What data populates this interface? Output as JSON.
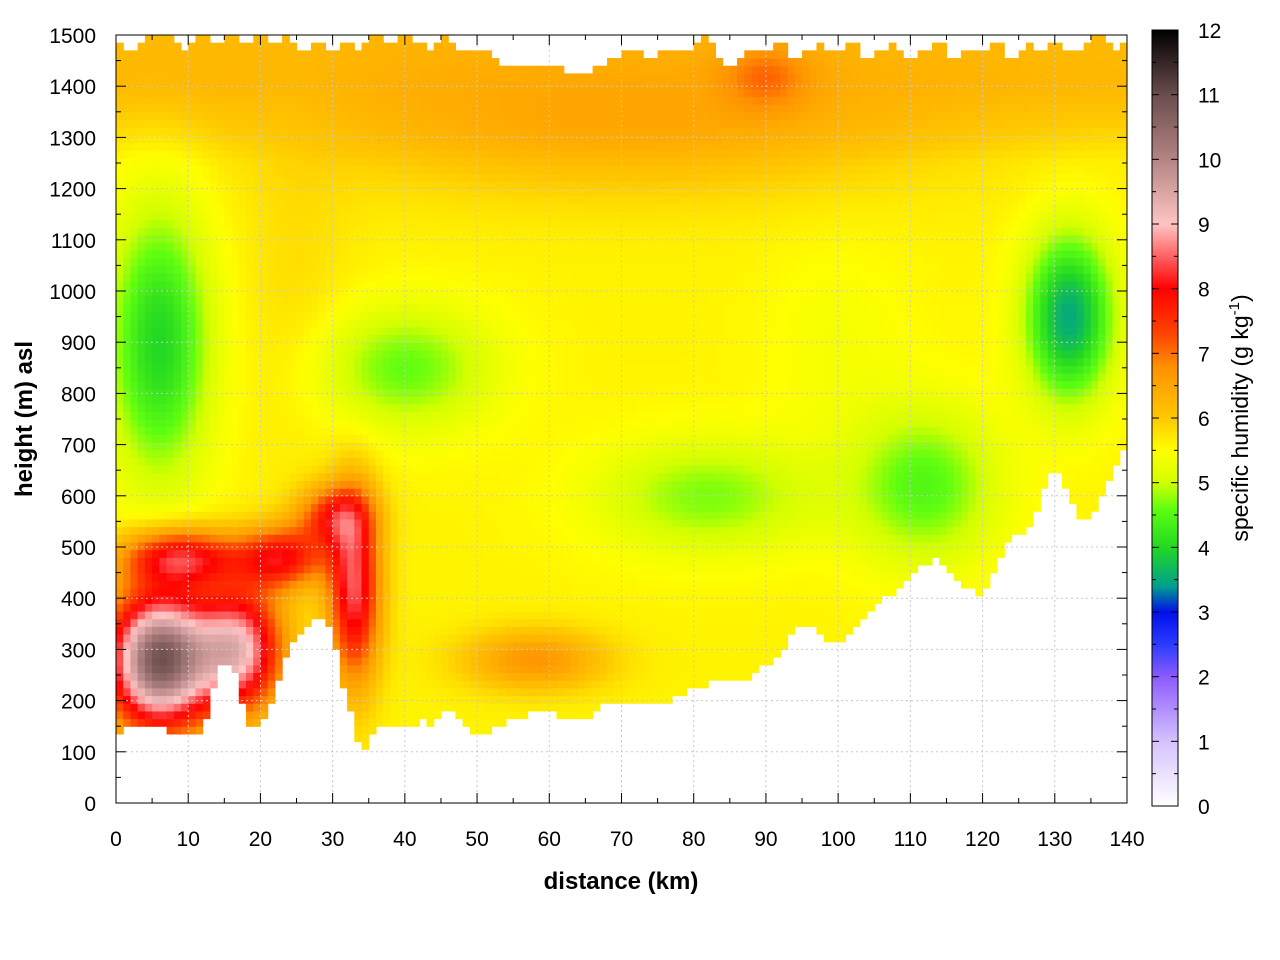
{
  "chart_data": {
    "type": "heatmap",
    "xlabel": "distance (km)",
    "ylabel": "height (m) asl",
    "xlim": [
      0,
      140
    ],
    "ylim": [
      0,
      1500
    ],
    "x_ticks": [
      0,
      10,
      20,
      30,
      40,
      50,
      60,
      70,
      80,
      90,
      100,
      110,
      120,
      130,
      140
    ],
    "y_ticks": [
      0,
      100,
      200,
      300,
      400,
      500,
      600,
      700,
      800,
      900,
      1000,
      1100,
      1200,
      1300,
      1400,
      1500
    ],
    "grid": true,
    "colorbar": {
      "label_prefix": "specific humidity (g kg",
      "label_sup": "-1",
      "label_suffix": ")",
      "range": [
        0,
        12
      ],
      "ticks": [
        0,
        1,
        2,
        3,
        4,
        5,
        6,
        7,
        8,
        9,
        10,
        11,
        12
      ],
      "colormap": [
        {
          "v": 0,
          "c": "#ffffff"
        },
        {
          "v": 1,
          "c": "#d4c2ff"
        },
        {
          "v": 2,
          "c": "#8c5aff"
        },
        {
          "v": 2.5,
          "c": "#2a3cff"
        },
        {
          "v": 3,
          "c": "#0010e8"
        },
        {
          "v": 3.4,
          "c": "#00a08c"
        },
        {
          "v": 4,
          "c": "#22d822"
        },
        {
          "v": 4.6,
          "c": "#60ff10"
        },
        {
          "v": 5,
          "c": "#d2ff00"
        },
        {
          "v": 5.5,
          "c": "#ffff00"
        },
        {
          "v": 6,
          "c": "#ffc800"
        },
        {
          "v": 6.8,
          "c": "#ff9000"
        },
        {
          "v": 7.3,
          "c": "#ff4400"
        },
        {
          "v": 8,
          "c": "#ff0000"
        },
        {
          "v": 9,
          "c": "#ffc4c4"
        },
        {
          "v": 10,
          "c": "#b48484"
        },
        {
          "v": 11,
          "c": "#6a4c4c"
        },
        {
          "v": 12,
          "c": "#000000"
        }
      ]
    },
    "surface_height_m": [
      [
        0,
        130
      ],
      [
        2,
        160
      ],
      [
        4,
        150
      ],
      [
        6,
        145
      ],
      [
        8,
        140
      ],
      [
        10,
        130
      ],
      [
        12,
        135
      ],
      [
        14,
        260
      ],
      [
        16,
        280
      ],
      [
        18,
        160
      ],
      [
        20,
        150
      ],
      [
        22,
        220
      ],
      [
        24,
        300
      ],
      [
        26,
        340
      ],
      [
        28,
        370
      ],
      [
        30,
        330
      ],
      [
        32,
        200
      ],
      [
        34,
        95
      ],
      [
        36,
        150
      ],
      [
        38,
        160
      ],
      [
        40,
        150
      ],
      [
        42,
        160
      ],
      [
        44,
        155
      ],
      [
        46,
        185
      ],
      [
        48,
        150
      ],
      [
        50,
        140
      ],
      [
        52,
        140
      ],
      [
        54,
        155
      ],
      [
        56,
        170
      ],
      [
        58,
        175
      ],
      [
        60,
        175
      ],
      [
        62,
        170
      ],
      [
        64,
        165
      ],
      [
        66,
        175
      ],
      [
        68,
        200
      ],
      [
        70,
        195
      ],
      [
        72,
        190
      ],
      [
        74,
        195
      ],
      [
        76,
        195
      ],
      [
        78,
        210
      ],
      [
        80,
        225
      ],
      [
        82,
        235
      ],
      [
        84,
        245
      ],
      [
        86,
        235
      ],
      [
        88,
        245
      ],
      [
        90,
        270
      ],
      [
        92,
        290
      ],
      [
        94,
        340
      ],
      [
        96,
        350
      ],
      [
        98,
        320
      ],
      [
        100,
        310
      ],
      [
        102,
        340
      ],
      [
        104,
        360
      ],
      [
        106,
        395
      ],
      [
        108,
        410
      ],
      [
        110,
        450
      ],
      [
        112,
        470
      ],
      [
        114,
        480
      ],
      [
        116,
        450
      ],
      [
        118,
        420
      ],
      [
        120,
        400
      ],
      [
        122,
        470
      ],
      [
        124,
        520
      ],
      [
        126,
        530
      ],
      [
        128,
        590
      ],
      [
        130,
        670
      ],
      [
        132,
        600
      ],
      [
        134,
        550
      ],
      [
        136,
        580
      ],
      [
        138,
        650
      ],
      [
        140,
        700
      ]
    ],
    "top_height_m": [
      [
        0,
        1490
      ],
      [
        2,
        1460
      ],
      [
        4,
        1490
      ],
      [
        6,
        1500
      ],
      [
        8,
        1490
      ],
      [
        10,
        1470
      ],
      [
        12,
        1500
      ],
      [
        14,
        1480
      ],
      [
        16,
        1500
      ],
      [
        18,
        1470
      ],
      [
        20,
        1500
      ],
      [
        22,
        1480
      ],
      [
        24,
        1500
      ],
      [
        26,
        1460
      ],
      [
        28,
        1490
      ],
      [
        30,
        1470
      ],
      [
        32,
        1490
      ],
      [
        34,
        1470
      ],
      [
        36,
        1500
      ],
      [
        38,
        1470
      ],
      [
        40,
        1500
      ],
      [
        42,
        1480
      ],
      [
        44,
        1470
      ],
      [
        46,
        1500
      ],
      [
        48,
        1460
      ],
      [
        50,
        1470
      ],
      [
        52,
        1460
      ],
      [
        54,
        1430
      ],
      [
        56,
        1440
      ],
      [
        58,
        1445
      ],
      [
        60,
        1440
      ],
      [
        62,
        1430
      ],
      [
        64,
        1420
      ],
      [
        66,
        1430
      ],
      [
        68,
        1450
      ],
      [
        70,
        1460
      ],
      [
        72,
        1470
      ],
      [
        74,
        1450
      ],
      [
        76,
        1470
      ],
      [
        78,
        1460
      ],
      [
        80,
        1480
      ],
      [
        82,
        1500
      ],
      [
        84,
        1430
      ],
      [
        86,
        1450
      ],
      [
        88,
        1470
      ],
      [
        90,
        1460
      ],
      [
        92,
        1490
      ],
      [
        94,
        1450
      ],
      [
        96,
        1470
      ],
      [
        98,
        1480
      ],
      [
        100,
        1460
      ],
      [
        102,
        1490
      ],
      [
        104,
        1450
      ],
      [
        106,
        1470
      ],
      [
        108,
        1480
      ],
      [
        110,
        1450
      ],
      [
        112,
        1470
      ],
      [
        114,
        1490
      ],
      [
        116,
        1450
      ],
      [
        118,
        1480
      ],
      [
        120,
        1460
      ],
      [
        122,
        1490
      ],
      [
        124,
        1450
      ],
      [
        126,
        1480
      ],
      [
        128,
        1470
      ],
      [
        130,
        1490
      ],
      [
        132,
        1460
      ],
      [
        134,
        1480
      ],
      [
        136,
        1500
      ],
      [
        138,
        1470
      ],
      [
        140,
        1490
      ]
    ],
    "humidity_features": [
      {
        "x": 6,
        "z": 280,
        "sx": 7,
        "sz": 130,
        "q": 10.8
      },
      {
        "x": 17,
        "z": 300,
        "sx": 6,
        "sz": 120,
        "q": 9.0
      },
      {
        "x": 9,
        "z": 480,
        "sx": 8,
        "sz": 55,
        "q": 8.0
      },
      {
        "x": 23,
        "z": 480,
        "sx": 6,
        "sz": 60,
        "q": 7.8
      },
      {
        "x": 33,
        "z": 420,
        "sx": 3.5,
        "sz": 180,
        "q": 8.4
      },
      {
        "x": 30,
        "z": 560,
        "sx": 5,
        "sz": 60,
        "q": 7.4
      },
      {
        "x": 58,
        "z": 280,
        "sx": 10,
        "sz": 60,
        "q": 6.7
      },
      {
        "x": 6,
        "z": 900,
        "sx": 7,
        "sz": 260,
        "q": 4.0
      },
      {
        "x": 40,
        "z": 850,
        "sx": 12,
        "sz": 120,
        "q": 4.6
      },
      {
        "x": 82,
        "z": 600,
        "sx": 15,
        "sz": 110,
        "q": 4.7
      },
      {
        "x": 112,
        "z": 620,
        "sx": 10,
        "sz": 150,
        "q": 4.5
      },
      {
        "x": 132,
        "z": 950,
        "sx": 6,
        "sz": 160,
        "q": 3.5
      },
      {
        "x": 70,
        "z": 1350,
        "sx": 45,
        "sz": 150,
        "q": 6.5
      },
      {
        "x": 90,
        "z": 1420,
        "sx": 6,
        "sz": 60,
        "q": 6.9
      },
      {
        "x": 25,
        "z": 1000,
        "sx": 8,
        "sz": 300,
        "q": 5.8
      },
      {
        "x": 100,
        "z": 900,
        "sx": 10,
        "sz": 200,
        "q": 5.4
      }
    ]
  }
}
